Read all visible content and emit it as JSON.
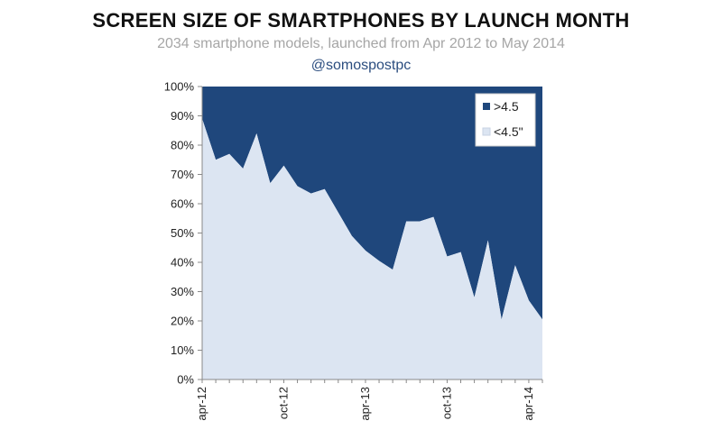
{
  "chart_data": {
    "type": "area",
    "title": "SCREEN SIZE OF SMARTPHONES BY LAUNCH MONTH",
    "subtitle": "2034 smartphone models, launched from Apr 2012 to May 2014",
    "handle": "@somospostpc",
    "x": [
      "apr-12",
      "may-12",
      "jun-12",
      "jul-12",
      "aug-12",
      "sep-12",
      "oct-12",
      "nov-12",
      "dec-12",
      "jan-13",
      "feb-13",
      "mar-13",
      "apr-13",
      "may-13",
      "jun-13",
      "jul-13",
      "aug-13",
      "sep-13",
      "oct-13",
      "nov-13",
      "dec-13",
      "jan-14",
      "feb-14",
      "mar-14",
      "apr-14",
      "may-14"
    ],
    "x_tick_labels": [
      "apr-12",
      "oct-12",
      "apr-13",
      "oct-13",
      "apr-14"
    ],
    "ylim": [
      0,
      100
    ],
    "y_tick_labels": [
      "0%",
      "10%",
      "20%",
      "30%",
      "40%",
      "50%",
      "60%",
      "70%",
      "80%",
      "90%",
      "100%"
    ],
    "stacked": true,
    "series": [
      {
        "name": "<4.5\"",
        "color": "#dce5f2",
        "values": [
          89,
          75,
          77,
          72,
          84,
          67,
          73,
          66,
          63.5,
          65,
          57,
          49,
          44,
          40.5,
          37.5,
          54,
          54,
          55.5,
          42,
          43.5,
          28,
          47.5,
          20.5,
          39,
          27,
          20.5
        ]
      },
      {
        "name": ">4.5",
        "color": "#1f477c",
        "values": [
          11,
          25,
          23,
          28,
          16,
          33,
          27,
          34,
          36.5,
          35,
          43,
          51,
          56,
          59.5,
          62.5,
          46,
          46,
          44.5,
          58,
          56.5,
          72,
          52.5,
          79.5,
          61,
          73,
          79.5
        ]
      }
    ],
    "legend": {
      "position": "top-right",
      "items": [
        {
          "label": ">4.5",
          "color": "#1f477c"
        },
        {
          "label": "<4.5\"",
          "color": "#dce5f2"
        }
      ]
    },
    "grid": false
  }
}
